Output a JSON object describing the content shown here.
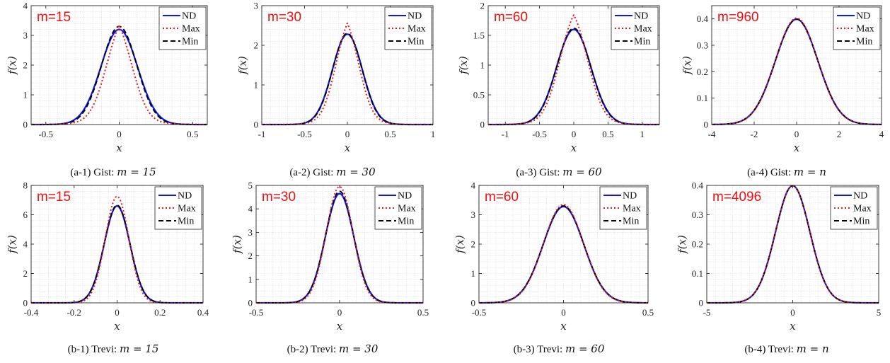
{
  "chart_data": [
    {
      "type": "line",
      "id": "a1",
      "m_label": "m=15",
      "caption_prefix": "(a-1) Gist: ",
      "caption_math": "m = 15",
      "xlabel": "x",
      "ylabel": "f(x)",
      "xlim": [
        -0.6,
        0.6
      ],
      "ylim": [
        0,
        4
      ],
      "xticks": [
        -0.5,
        0,
        0.5
      ],
      "yticks": [
        0,
        1,
        2,
        3,
        4
      ],
      "legend": [
        "ND",
        "Max",
        "Min"
      ],
      "legend_position": "top-right",
      "series": [
        {
          "name": "ND",
          "peak": 3.2,
          "sd": 0.125,
          "tail": 0
        },
        {
          "name": "Max",
          "peak": 3.45,
          "sd": 0.1,
          "tail": 0.35
        },
        {
          "name": "Min",
          "peak": 3.3,
          "sd": 0.12,
          "tail": 0
        }
      ]
    },
    {
      "type": "line",
      "id": "a2",
      "m_label": "m=30",
      "caption_prefix": "(a-2) Gist: ",
      "caption_math": "m = 30",
      "xlabel": "x",
      "ylabel": "f(x)",
      "xlim": [
        -1,
        1
      ],
      "ylim": [
        0,
        3
      ],
      "xticks": [
        -1,
        -0.5,
        0,
        0.5,
        1
      ],
      "yticks": [
        0,
        1,
        2,
        3
      ],
      "legend": [
        "ND",
        "Max",
        "Min"
      ],
      "legend_position": "top-right",
      "series": [
        {
          "name": "ND",
          "peak": 2.28,
          "sd": 0.175,
          "tail": 0
        },
        {
          "name": "Max",
          "peak": 2.62,
          "sd": 0.15,
          "tail": 0.3
        },
        {
          "name": "Min",
          "peak": 2.3,
          "sd": 0.172,
          "tail": 0
        }
      ]
    },
    {
      "type": "line",
      "id": "a3",
      "m_label": "m=60",
      "caption_prefix": "(a-3) Gist: ",
      "caption_math": "m = 60",
      "xlabel": "x",
      "ylabel": "f(x)",
      "xlim": [
        -1.25,
        1.25
      ],
      "ylim": [
        0,
        2
      ],
      "xticks": [
        -1,
        -0.5,
        0,
        0.5,
        1
      ],
      "yticks": [
        0,
        0.5,
        1,
        1.5,
        2
      ],
      "legend": [
        "ND",
        "Max",
        "Min"
      ],
      "legend_position": "top-right",
      "series": [
        {
          "name": "ND",
          "peak": 1.6,
          "sd": 0.25,
          "tail": 0
        },
        {
          "name": "Max",
          "peak": 1.88,
          "sd": 0.22,
          "tail": 0.25
        },
        {
          "name": "Min",
          "peak": 1.62,
          "sd": 0.246,
          "tail": 0
        }
      ]
    },
    {
      "type": "line",
      "id": "a4",
      "m_label": "m=960",
      "caption_prefix": "(a-4) Gist: ",
      "caption_math": "m = n",
      "xlabel": "x",
      "ylabel": "f(x)",
      "xlim": [
        -4,
        4
      ],
      "ylim": [
        0,
        0.45
      ],
      "xticks": [
        -4,
        -2,
        0,
        2,
        4
      ],
      "yticks": [
        0,
        0.1,
        0.2,
        0.3,
        0.4
      ],
      "legend": [
        "ND",
        "Max",
        "Min"
      ],
      "legend_position": "top-right",
      "series": [
        {
          "name": "ND",
          "peak": 0.399,
          "sd": 1,
          "tail": 0
        },
        {
          "name": "Max",
          "peak": 0.403,
          "sd": 0.99,
          "tail": 0
        },
        {
          "name": "Min",
          "peak": 0.399,
          "sd": 1,
          "tail": 0
        }
      ]
    },
    {
      "type": "line",
      "id": "b1",
      "m_label": "m=15",
      "caption_prefix": "(b-1) Trevi: ",
      "caption_math": "m = 15",
      "xlabel": "x",
      "ylabel": "f(x)",
      "xlim": [
        -0.4,
        0.4
      ],
      "ylim": [
        0,
        8
      ],
      "xticks": [
        -0.4,
        -0.2,
        0,
        0.2,
        0.4
      ],
      "yticks": [
        0,
        2,
        4,
        6,
        8
      ],
      "legend": [
        "ND",
        "Max",
        "Min"
      ],
      "legend_position": "top-right",
      "series": [
        {
          "name": "ND",
          "peak": 6.6,
          "sd": 0.06,
          "tail": 0
        },
        {
          "name": "Max",
          "peak": 7.25,
          "sd": 0.055,
          "tail": 0
        },
        {
          "name": "Min",
          "peak": 6.65,
          "sd": 0.06,
          "tail": 0
        }
      ]
    },
    {
      "type": "line",
      "id": "b2",
      "m_label": "m=30",
      "caption_prefix": "(b-2) Trevi: ",
      "caption_math": "m = 30",
      "xlabel": "x",
      "ylabel": "f(x)",
      "xlim": [
        -0.5,
        0.5
      ],
      "ylim": [
        0,
        5
      ],
      "xticks": [
        -0.5,
        0,
        0.5
      ],
      "yticks": [
        0,
        1,
        2,
        3,
        4,
        5
      ],
      "legend": [
        "ND",
        "Max",
        "Min"
      ],
      "legend_position": "top-right",
      "series": [
        {
          "name": "ND",
          "peak": 4.65,
          "sd": 0.085,
          "tail": 0
        },
        {
          "name": "Max",
          "peak": 4.95,
          "sd": 0.08,
          "tail": 0
        },
        {
          "name": "Min",
          "peak": 4.75,
          "sd": 0.084,
          "tail": 0
        }
      ]
    },
    {
      "type": "line",
      "id": "b3",
      "m_label": "m=60",
      "caption_prefix": "(b-3) Trevi: ",
      "caption_math": "m = 60",
      "xlabel": "x",
      "ylabel": "f(x)",
      "xlim": [
        -0.5,
        0.5
      ],
      "ylim": [
        0,
        4
      ],
      "xticks": [
        -0.5,
        0,
        0.5
      ],
      "yticks": [
        0,
        1,
        2,
        3,
        4
      ],
      "legend": [
        "ND",
        "Max",
        "Min"
      ],
      "legend_position": "top-right",
      "series": [
        {
          "name": "ND",
          "peak": 3.28,
          "sd": 0.12,
          "tail": 0
        },
        {
          "name": "Max",
          "peak": 3.35,
          "sd": 0.118,
          "tail": 0
        },
        {
          "name": "Min",
          "peak": 3.3,
          "sd": 0.12,
          "tail": 0
        }
      ]
    },
    {
      "type": "line",
      "id": "b4",
      "m_label": "m=4096",
      "caption_prefix": "(b-4) Trevi: ",
      "caption_math": "m = n",
      "xlabel": "x",
      "ylabel": "f(x)",
      "xlim": [
        -5,
        5
      ],
      "ylim": [
        0,
        0.4
      ],
      "xticks": [
        -5,
        0,
        5
      ],
      "yticks": [
        0,
        0.1,
        0.2,
        0.3,
        0.4
      ],
      "legend": [
        "ND",
        "Max",
        "Min"
      ],
      "legend_position": "top-right",
      "series": [
        {
          "name": "ND",
          "peak": 0.399,
          "sd": 1,
          "tail": 0
        },
        {
          "name": "Max",
          "peak": 0.399,
          "sd": 1,
          "tail": 0
        },
        {
          "name": "Min",
          "peak": 0.399,
          "sd": 1,
          "tail": 0
        }
      ]
    }
  ],
  "series_colors": {
    "ND": "#0a14ff",
    "Max": "#e41a1c",
    "Min": "#000000"
  },
  "series_styles": {
    "ND": "solid",
    "Max": "dotted",
    "Min": "dashed"
  },
  "m_label_color": "#ee1111"
}
